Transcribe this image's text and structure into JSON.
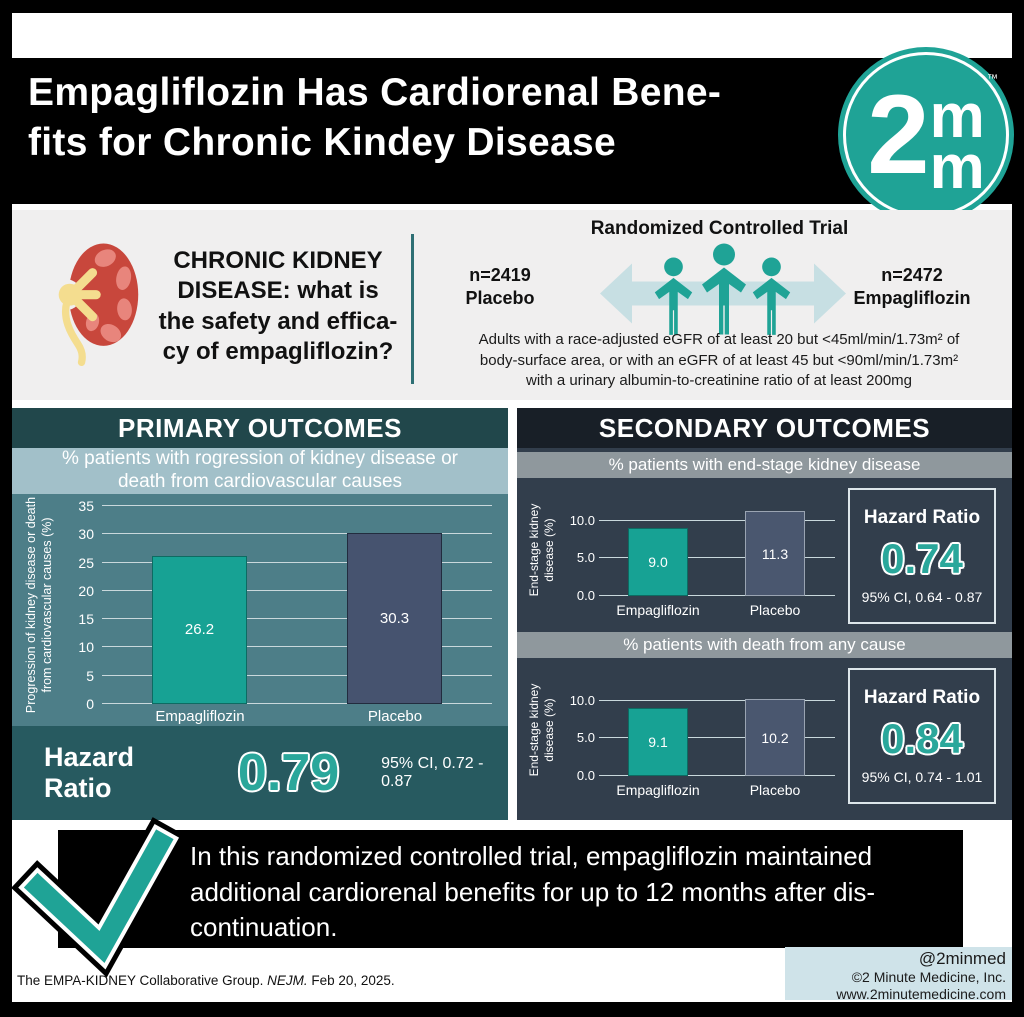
{
  "colors": {
    "teal": "#1fa396",
    "teal_number": "#2aa79b",
    "arrow_light": "#c7dfe3",
    "primary_header_bg": "#21474b",
    "primary_subtitle_bg": "#a2c0c9",
    "primary_chart_bg": "#4d7e88",
    "primary_hazard_bg": "#275a60",
    "secondary_header_bg": "#181f27",
    "secondary_panel_bg": "#323e4c",
    "gray_band_bg": "#8f989d",
    "empagliflozin_bar": "#17a294",
    "placebo_bar": "#46536f",
    "footer_box_bg": "#cfe3e9",
    "info_panel_bg": "#f0efef"
  },
  "header": {
    "title_line1": "Empagliflozin Has Cardiorenal Bene-",
    "title_line2": "fits for Chronic Kindey Disease",
    "logo_digit": "2",
    "logo_m_top": "m",
    "logo_m_bottom": "m",
    "logo_tm": "™"
  },
  "study": {
    "question_line1": "CHRONIC KIDNEY",
    "question_line2": "DISEASE: what is",
    "question_line3": "the safety and effica-",
    "question_line4": "cy of empagliflozin?",
    "trial_type": "Randomized Controlled Trial",
    "group_left": {
      "n": "n=2419",
      "label": "Placebo"
    },
    "group_right": {
      "n": "n=2472",
      "label": "Empagliflozin"
    },
    "criteria_line1": "Adults with a race-adjusted eGFR of at least 20 but <45ml/min/1.73m² of",
    "criteria_line2": "body-surface area, or with an eGFR of at least 45 but <90ml/min/1.73m²",
    "criteria_line3": "with a urinary albumin-to-creatinine ratio of at least 200mg"
  },
  "primary": {
    "header": "PRIMARY OUTCOMES",
    "hazard": {
      "label": "Hazard Ratio",
      "value": "0.79",
      "ci": "95% CI, 0.72 - 0.87"
    }
  },
  "secondary": {
    "header": "SECONDARY OUTCOMES",
    "hazards": [
      {
        "label": "Hazard Ratio",
        "value": "0.74",
        "ci": "95% CI, 0.64 - 0.87"
      },
      {
        "label": "Hazard Ratio",
        "value": "0.84",
        "ci": "95% CI, 0.74 - 1.01"
      }
    ]
  },
  "chart_data": [
    {
      "type": "bar",
      "title": "% patients with rogression of kidney disease or death from cardiovascular causes",
      "categories": [
        "Empagliflozin",
        "Placebo"
      ],
      "values": [
        26.2,
        30.3
      ],
      "value_labels": [
        "26.2",
        "30.3"
      ],
      "bar_colors": [
        "#17a294",
        "#46536f"
      ],
      "bar_border_colors": [
        "#0d6b62",
        "#222c3e"
      ],
      "ylabel": "Progression of kidney disease or death from cardiovascular causes (%)",
      "yticks": [
        0,
        5,
        10,
        15,
        20,
        25,
        30,
        35
      ],
      "ytick_labels": [
        "0",
        "5",
        "10",
        "15",
        "20",
        "25",
        "30",
        "35"
      ],
      "ylim": [
        0,
        35
      ],
      "grid": true,
      "legend": false
    },
    {
      "type": "bar",
      "title": "% patients with end-stage kidney disease",
      "categories": [
        "Empagliflozin",
        "Placebo"
      ],
      "values": [
        9.0,
        11.3
      ],
      "value_labels": [
        "9.0",
        "11.3"
      ],
      "bar_colors": [
        "#17a294",
        "#4a576f"
      ],
      "bar_border_colors": [
        "#0d6b62",
        "#9aa4b2"
      ],
      "ylabel": "End-stage kidney disease (%)",
      "yticks": [
        0,
        5,
        10
      ],
      "ytick_labels": [
        "0.0",
        "5.0",
        "10.0"
      ],
      "ylim": [
        0,
        12.5
      ],
      "grid": true,
      "legend": false
    },
    {
      "type": "bar",
      "title": "% patients with death from any cause",
      "categories": [
        "Empagliflozin",
        "Placebo"
      ],
      "values": [
        9.1,
        10.2
      ],
      "value_labels": [
        "9.1",
        "10.2"
      ],
      "bar_colors": [
        "#17a294",
        "#4a576f"
      ],
      "bar_border_colors": [
        "#0d6b62",
        "#9aa4b2"
      ],
      "ylabel": "End-stage kidney disease (%)",
      "yticks": [
        0,
        5,
        10
      ],
      "ytick_labels": [
        "0.0",
        "5.0",
        "10.0"
      ],
      "ylim": [
        0,
        12.5
      ],
      "grid": true,
      "legend": false
    }
  ],
  "conclusion": {
    "line1": "In this randomized controlled trial, empagliflozin maintained",
    "line2": "additional cardiorenal benefits for up to 12 months after dis-",
    "line3": "continuation."
  },
  "footer": {
    "citation_prefix": "The EMPA-KIDNEY Collaborative Group. ",
    "citation_journal": "NEJM.",
    "citation_suffix": " Feb 20, 2025.",
    "handle": "@2minmed",
    "company": "©2 Minute Medicine, Inc.",
    "website": "www.2minutemedicine.com"
  },
  "icons": {
    "logo": "2minute-medicine-logo",
    "kidney": "kidney-icon",
    "people_arrow": "people-exchange-arrow-icon",
    "checkmark": "checkmark-icon"
  }
}
